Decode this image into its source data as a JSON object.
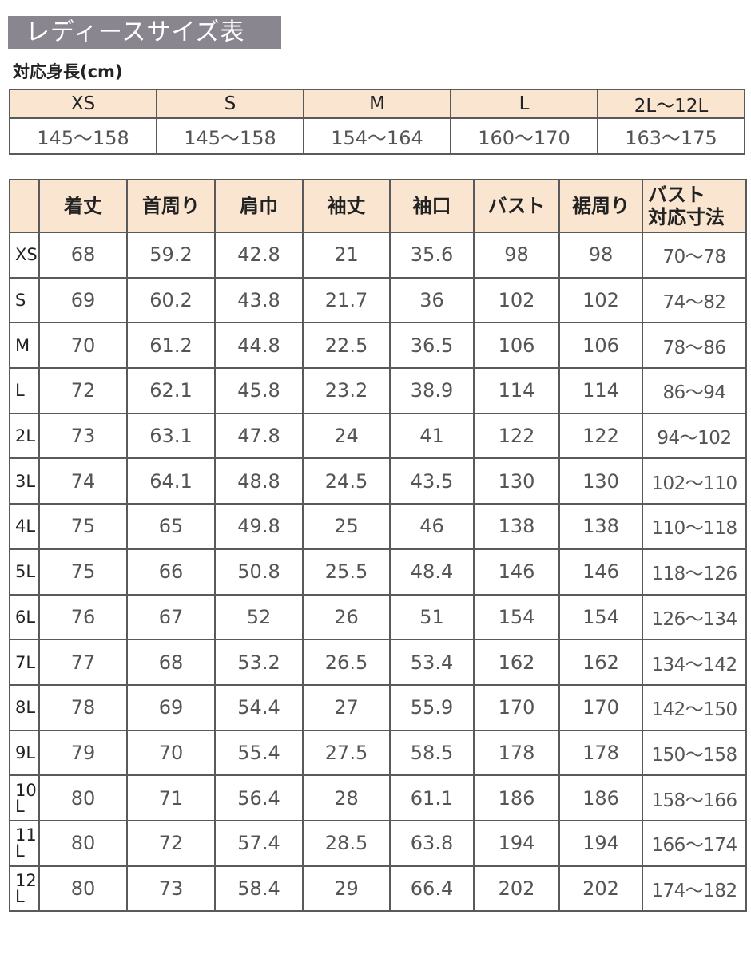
{
  "title": "レディースサイズ表",
  "height_table": {
    "label": "対応身長(cm)",
    "sizes": [
      "XS",
      "S",
      "M",
      "L",
      "2L〜12L"
    ],
    "heights": [
      "145〜158",
      "145〜158",
      "154〜164",
      "160〜170",
      "163〜175"
    ]
  },
  "size_table": {
    "headers": [
      "",
      "着丈",
      "首周り",
      "肩巾",
      "袖丈",
      "袖口",
      "バスト",
      "裾周り",
      "バスト\n対応寸法"
    ],
    "rows": [
      {
        "size": "XS",
        "values": [
          "68",
          "59.2",
          "42.8",
          "21",
          "35.6",
          "98",
          "98",
          "70〜78"
        ]
      },
      {
        "size": "S",
        "values": [
          "69",
          "60.2",
          "43.8",
          "21.7",
          "36",
          "102",
          "102",
          "74〜82"
        ]
      },
      {
        "size": "M",
        "values": [
          "70",
          "61.2",
          "44.8",
          "22.5",
          "36.5",
          "106",
          "106",
          "78〜86"
        ]
      },
      {
        "size": "L",
        "values": [
          "72",
          "62.1",
          "45.8",
          "23.2",
          "38.9",
          "114",
          "114",
          "86〜94"
        ]
      },
      {
        "size": "2L",
        "values": [
          "73",
          "63.1",
          "47.8",
          "24",
          "41",
          "122",
          "122",
          "94〜102"
        ]
      },
      {
        "size": "3L",
        "values": [
          "74",
          "64.1",
          "48.8",
          "24.5",
          "43.5",
          "130",
          "130",
          "102〜110"
        ]
      },
      {
        "size": "4L",
        "values": [
          "75",
          "65",
          "49.8",
          "25",
          "46",
          "138",
          "138",
          "110〜118"
        ]
      },
      {
        "size": "5L",
        "values": [
          "75",
          "66",
          "50.8",
          "25.5",
          "48.4",
          "146",
          "146",
          "118〜126"
        ]
      },
      {
        "size": "6L",
        "values": [
          "76",
          "67",
          "52",
          "26",
          "51",
          "154",
          "154",
          "126〜134"
        ]
      },
      {
        "size": "7L",
        "values": [
          "77",
          "68",
          "53.2",
          "26.5",
          "53.4",
          "162",
          "162",
          "134〜142"
        ]
      },
      {
        "size": "8L",
        "values": [
          "78",
          "69",
          "54.4",
          "27",
          "55.9",
          "170",
          "170",
          "142〜150"
        ]
      },
      {
        "size": "9L",
        "values": [
          "79",
          "70",
          "55.4",
          "27.5",
          "58.5",
          "178",
          "178",
          "150〜158"
        ]
      },
      {
        "size": "10L",
        "values": [
          "80",
          "71",
          "56.4",
          "28",
          "61.1",
          "186",
          "186",
          "158〜166"
        ]
      },
      {
        "size": "11L",
        "values": [
          "80",
          "72",
          "57.4",
          "28.5",
          "63.8",
          "194",
          "194",
          "166〜174"
        ]
      },
      {
        "size": "12L",
        "values": [
          "80",
          "73",
          "58.4",
          "29",
          "66.4",
          "202",
          "202",
          "174〜182"
        ]
      }
    ]
  },
  "colors": {
    "title_bg": "#8a8690",
    "header_bg": "#f9e5d0",
    "border": "#5a5a5a"
  }
}
